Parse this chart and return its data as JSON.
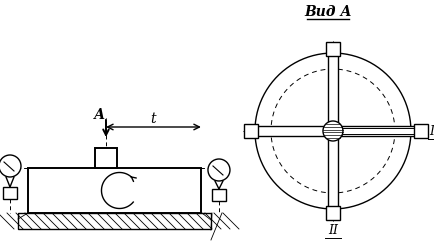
{
  "bg_color": "#ffffff",
  "line_color": "#000000",
  "title": "Вид А",
  "label_A": "А",
  "label_t": "t",
  "label_I": "I",
  "label_II": "II",
  "fig_width": 4.34,
  "fig_height": 2.41,
  "dpi": 100
}
